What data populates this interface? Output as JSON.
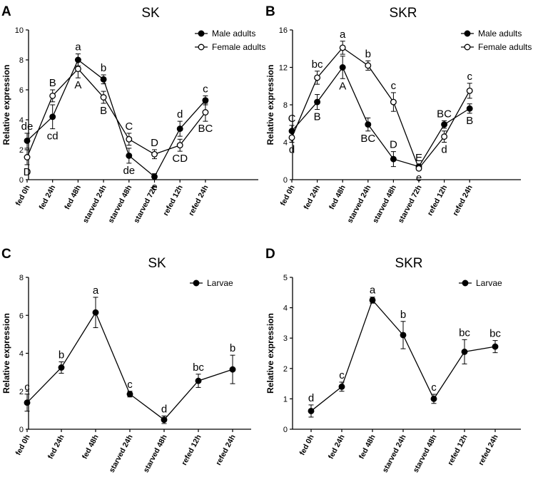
{
  "chart_data": [
    {
      "panel": "A",
      "type": "line",
      "title": "SK",
      "xlabel": "",
      "ylabel": "Relative expression",
      "ylim": [
        0,
        10
      ],
      "yticks": [
        0,
        2,
        4,
        6,
        8,
        10
      ],
      "categories": [
        "fed 0h",
        "fed 24h",
        "fed 48h",
        "starved 24h",
        "starved 48h",
        "starved 72h",
        "refed 12h",
        "refed 24h"
      ],
      "legend_position": "top-right",
      "series": [
        {
          "name": "Male adults",
          "marker": "filled",
          "values": [
            2.6,
            4.2,
            8.0,
            6.7,
            1.6,
            0.2,
            3.4,
            5.3
          ],
          "errors": [
            0.5,
            0.8,
            0.4,
            0.3,
            0.5,
            0.2,
            0.5,
            0.3
          ],
          "labels": [
            "de",
            "cd",
            "a",
            "b",
            "de",
            "e",
            "d",
            "c"
          ]
        },
        {
          "name": "Female adults",
          "marker": "open",
          "values": [
            1.5,
            5.6,
            7.4,
            5.5,
            2.7,
            1.7,
            2.3,
            4.5
          ],
          "errors": [
            0.5,
            0.4,
            0.6,
            0.4,
            0.4,
            0.3,
            0.4,
            0.6
          ],
          "labels": [
            "D",
            "B",
            "A",
            "B",
            "C",
            "D",
            "CD",
            "BC"
          ]
        }
      ]
    },
    {
      "panel": "B",
      "type": "line",
      "title": "SKR",
      "xlabel": "",
      "ylabel": "Relative expression",
      "ylim": [
        0,
        16
      ],
      "yticks": [
        0,
        4,
        8,
        12,
        16
      ],
      "categories": [
        "fed 0h",
        "fed 24h",
        "fed 48h",
        "starved 24h",
        "starved 48h",
        "starved 72h",
        "refed 12h",
        "refed 24h"
      ],
      "legend_position": "top-right",
      "series": [
        {
          "name": "Male adults",
          "marker": "filled",
          "values": [
            5.2,
            8.3,
            12.0,
            5.9,
            2.2,
            1.4,
            5.9,
            7.6
          ],
          "errors": [
            0.6,
            0.8,
            1.2,
            0.7,
            0.8,
            0.2,
            0.4,
            0.5
          ],
          "labels": [
            "C",
            "B",
            "A",
            "BC",
            "D",
            "E",
            "BC",
            "B"
          ]
        },
        {
          "name": "Female adults",
          "marker": "open",
          "values": [
            4.5,
            10.9,
            14.1,
            12.2,
            8.3,
            1.2,
            4.6,
            9.5
          ],
          "errors": [
            0.5,
            0.7,
            0.7,
            0.5,
            1.0,
            0.2,
            0.6,
            0.8
          ],
          "labels": [
            "d",
            "bc",
            "a",
            "b",
            "c",
            "e",
            "d",
            "c"
          ]
        }
      ]
    },
    {
      "panel": "C",
      "type": "line",
      "title": "SK",
      "xlabel": "",
      "ylabel": "Relative expression",
      "ylim": [
        0,
        8
      ],
      "yticks": [
        0,
        2,
        4,
        6,
        8
      ],
      "categories": [
        "fed 0h",
        "fed 24h",
        "fed 48h",
        "starved 24h",
        "starved 48h",
        "refed 12h",
        "refed 24h"
      ],
      "legend_position": "top-right",
      "series": [
        {
          "name": "Larvae",
          "marker": "filled",
          "values": [
            1.4,
            3.25,
            6.15,
            1.85,
            0.5,
            2.55,
            3.15
          ],
          "errors": [
            0.45,
            0.3,
            0.8,
            0.15,
            0.2,
            0.35,
            0.75
          ],
          "labels": [
            "c",
            "b",
            "a",
            "c",
            "d",
            "bc",
            "b"
          ]
        }
      ]
    },
    {
      "panel": "D",
      "type": "line",
      "title": "SKR",
      "xlabel": "",
      "ylabel": "Relative expression",
      "ylim": [
        0,
        5
      ],
      "yticks": [
        0,
        1,
        2,
        3,
        4,
        5
      ],
      "categories": [
        "fed 0h",
        "fed 24h",
        "fed 48h",
        "starved 24h",
        "starved 48h",
        "refed 12h",
        "refed 24h"
      ],
      "legend_position": "top-right",
      "series": [
        {
          "name": "Larvae",
          "marker": "filled",
          "values": [
            0.6,
            1.4,
            4.25,
            3.1,
            1.0,
            2.55,
            2.72
          ],
          "errors": [
            0.2,
            0.15,
            0.1,
            0.45,
            0.15,
            0.4,
            0.2
          ],
          "labels": [
            "d",
            "c",
            "a",
            "b",
            "c",
            "bc",
            "bc"
          ]
        }
      ]
    }
  ]
}
